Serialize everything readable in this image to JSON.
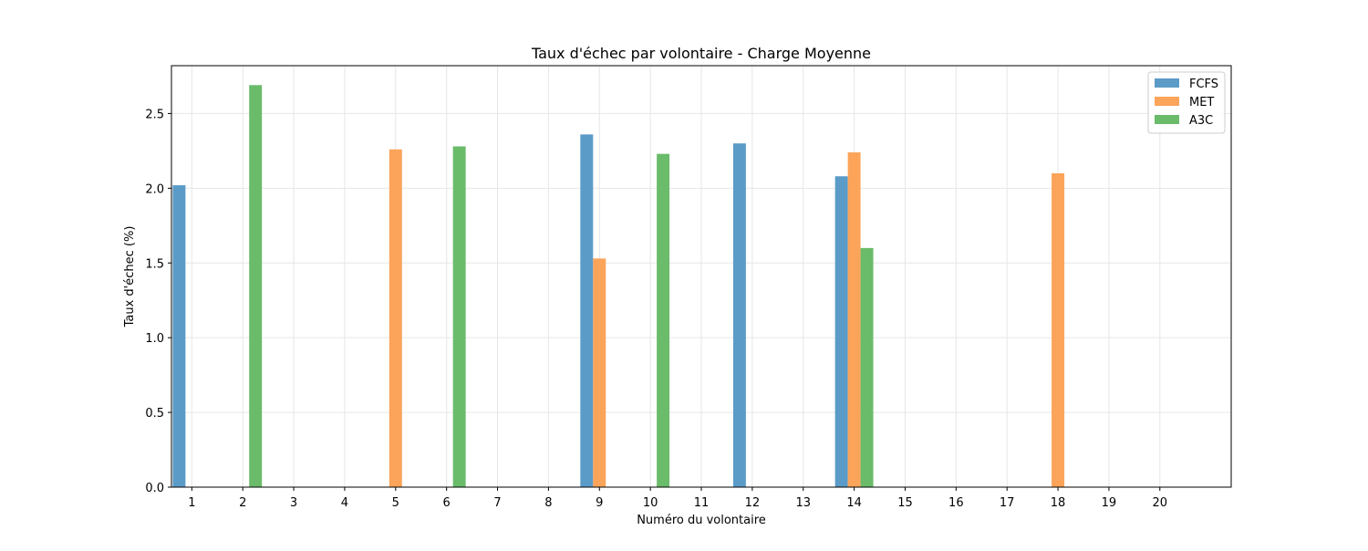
{
  "chart_data": {
    "type": "bar",
    "title": "Taux d'échec par volontaire - Charge Moyenne",
    "xlabel": "Numéro du volontaire",
    "ylabel": "Taux d'échec (%)",
    "categories": [
      "1",
      "2",
      "3",
      "4",
      "5",
      "6",
      "7",
      "8",
      "9",
      "10",
      "11",
      "12",
      "13",
      "14",
      "15",
      "16",
      "17",
      "18",
      "19",
      "20"
    ],
    "ylim": [
      0,
      2.82
    ],
    "yticks": [
      "0.0",
      "0.5",
      "1.0",
      "1.5",
      "2.0",
      "2.5"
    ],
    "grid": true,
    "legend_position": "top-right",
    "series": [
      {
        "name": "FCFS",
        "color": "#5b9bc7",
        "values": [
          2.02,
          0,
          0,
          0,
          0,
          0,
          0,
          0,
          2.36,
          0,
          0,
          2.3,
          0,
          2.08,
          0,
          0,
          0,
          0,
          0,
          0
        ]
      },
      {
        "name": "MET",
        "color": "#fba45a",
        "values": [
          0,
          0,
          0,
          0,
          2.26,
          0,
          0,
          0,
          1.53,
          0,
          0,
          0,
          0,
          2.24,
          0,
          0,
          0,
          2.1,
          0,
          0
        ]
      },
      {
        "name": "A3C",
        "color": "#6abb6a",
        "values": [
          0,
          2.69,
          0,
          0,
          0,
          2.28,
          0,
          0,
          0,
          2.23,
          0,
          0,
          0,
          1.6,
          0,
          0,
          0,
          0,
          0,
          0
        ]
      }
    ]
  }
}
